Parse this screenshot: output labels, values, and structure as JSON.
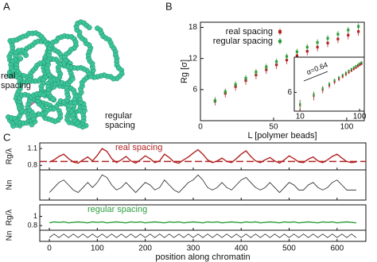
{
  "panel_a": {
    "label": "A",
    "annotations": [
      "real spacing",
      "regular spacing"
    ]
  },
  "chart_data": [
    {
      "type": "scatter",
      "label": "B",
      "xlabel": "L [polymer beads]",
      "ylabel": "Rg [σ]",
      "x": [
        10,
        17,
        24,
        31,
        38,
        45,
        52,
        59,
        66,
        73,
        80,
        87,
        94,
        101,
        108
      ],
      "xlim": [
        0,
        112
      ],
      "ylim": [
        0,
        19
      ],
      "xticks": [
        0,
        50,
        100
      ],
      "yticks": [
        6,
        12,
        18
      ],
      "legend": "upper left",
      "series": [
        {
          "name": "real spacing",
          "color": "#b22222",
          "values": [
            3.75,
            5.27,
            6.57,
            7.74,
            8.82,
            9.83,
            10.78,
            11.7,
            12.56,
            13.4,
            14.2,
            14.99,
            15.76,
            16.5,
            17.2
          ],
          "errors": [
            0.8,
            0.8,
            0.8,
            0.8,
            0.8,
            0.8,
            0.8,
            0.8,
            0.8,
            0.8,
            0.8,
            0.8,
            0.8,
            0.8,
            0.8
          ]
        },
        {
          "name": "regular spacing",
          "color": "#2e9e3e",
          "values": [
            3.9,
            5.6,
            7.0,
            8.2,
            9.4,
            10.4,
            11.4,
            12.4,
            13.3,
            14.2,
            15.1,
            15.9,
            16.7,
            17.5,
            18.2
          ],
          "errors": [
            0.6,
            0.6,
            0.6,
            0.6,
            0.6,
            0.6,
            0.6,
            0.6,
            0.6,
            0.6,
            0.6,
            0.6,
            0.6,
            0.6,
            0.6
          ]
        }
      ],
      "inset": {
        "log_scale": true,
        "xlim": [
          8,
          120
        ],
        "ylim": [
          3,
          22
        ],
        "xticks": [
          10,
          100
        ],
        "yticks": [
          6
        ],
        "annotation": "α=0.64"
      }
    },
    {
      "type": "line",
      "label": "C",
      "xlabel": "position along chromatin",
      "x": [
        0,
        10,
        20,
        30,
        40,
        50,
        60,
        70,
        80,
        90,
        100,
        110,
        120,
        130,
        140,
        150,
        160,
        170,
        180,
        190,
        200,
        210,
        220,
        230,
        240,
        250,
        260,
        270,
        280,
        290,
        300,
        310,
        320,
        330,
        340,
        350,
        360,
        370,
        380,
        390,
        400,
        410,
        420,
        430,
        440,
        450,
        460,
        470,
        480,
        490,
        500,
        510,
        520,
        530,
        540,
        550,
        560,
        570,
        580,
        590,
        600,
        610,
        620,
        630,
        640
      ],
      "xlim": [
        -20,
        660
      ],
      "xticks": [
        0,
        100,
        200,
        300,
        400,
        500,
        600
      ],
      "panels": [
        {
          "ylabel": "Rg/λ",
          "ylim": [
            0.72,
            1.2
          ],
          "yticks": [
            0.8,
            1.1
          ],
          "reference": 0.87,
          "series": [
            {
              "name": "real spacing",
              "color": "#b22222",
              "values": [
                0.86,
                0.9,
                0.96,
                1.0,
                0.92,
                0.86,
                0.84,
                0.9,
                0.95,
                0.88,
                0.98,
                1.1,
                1.05,
                0.92,
                0.85,
                0.9,
                0.96,
                0.88,
                0.84,
                0.9,
                0.97,
                0.92,
                0.85,
                0.88,
                1.0,
                0.94,
                0.86,
                0.84,
                0.9,
                0.95,
                1.02,
                1.08,
                1.0,
                0.9,
                0.85,
                0.88,
                0.93,
                0.87,
                0.85,
                0.92,
                1.0,
                1.06,
                0.96,
                0.88,
                0.85,
                0.9,
                0.94,
                0.88,
                0.84,
                0.9,
                0.97,
                0.92,
                0.86,
                0.85,
                0.91,
                0.95,
                0.88,
                0.85,
                0.9,
                0.96,
                1.0,
                0.93,
                0.87,
                0.85,
                0.86
              ]
            }
          ]
        },
        {
          "ylabel": "Nn",
          "ylim": [
            0,
            12
          ],
          "series": [
            {
              "color": "#222222",
              "values": [
                3,
                5,
                7,
                8,
                6,
                4,
                3,
                5,
                7,
                5,
                7,
                10,
                9,
                6,
                4,
                5,
                7,
                5,
                3,
                5,
                7,
                6,
                4,
                5,
                8,
                6,
                4,
                3,
                5,
                7,
                8,
                10,
                8,
                5,
                4,
                5,
                7,
                5,
                4,
                6,
                8,
                9,
                7,
                5,
                4,
                5,
                7,
                5,
                3,
                5,
                7,
                6,
                4,
                4,
                6,
                7,
                5,
                4,
                5,
                7,
                8,
                6,
                4,
                4,
                4
              ]
            }
          ]
        },
        {
          "ylabel": "Rg/λ",
          "ylim": [
            0.7,
            1.25
          ],
          "yticks": [
            0.8,
            1
          ],
          "series": [
            {
              "name": "regular spacing",
              "color": "#2e9e3e",
              "values": [
                0.86,
                0.88,
                0.87,
                0.88,
                0.86,
                0.87,
                0.88,
                0.87,
                0.86,
                0.88,
                0.87,
                0.88,
                0.86,
                0.87,
                0.88,
                0.87,
                0.86,
                0.88,
                0.87,
                0.88,
                0.86,
                0.87,
                0.88,
                0.87,
                0.86,
                0.88,
                0.87,
                0.88,
                0.86,
                0.87,
                0.88,
                0.87,
                0.86,
                0.88,
                0.87,
                0.88,
                0.86,
                0.87,
                0.88,
                0.87,
                0.86,
                0.88,
                0.87,
                0.88,
                0.86,
                0.87,
                0.88,
                0.87,
                0.86,
                0.88,
                0.87,
                0.88,
                0.86,
                0.87,
                0.88,
                0.87,
                0.86,
                0.88,
                0.87,
                0.88,
                0.86,
                0.87,
                0.88,
                0.87,
                0.86
              ]
            }
          ]
        },
        {
          "ylabel": "Nn",
          "ylim": [
            0,
            6
          ],
          "series": [
            {
              "color": "#222222",
              "values": [
                2,
                4,
                2,
                4,
                2,
                4,
                2,
                4,
                2,
                4,
                2,
                4,
                2,
                4,
                2,
                4,
                2,
                4,
                2,
                4,
                2,
                4,
                2,
                4,
                2,
                4,
                2,
                4,
                2,
                4,
                2,
                4,
                2,
                4,
                2,
                4,
                2,
                4,
                2,
                4,
                2,
                4,
                2,
                4,
                2,
                4,
                2,
                4,
                2,
                4,
                2,
                4,
                2,
                4,
                2,
                4,
                2,
                4,
                2,
                4,
                2,
                4,
                2,
                4,
                2
              ]
            }
          ]
        }
      ]
    }
  ]
}
